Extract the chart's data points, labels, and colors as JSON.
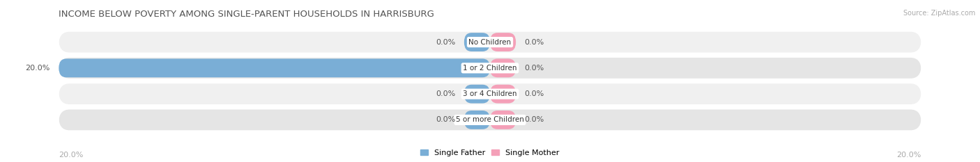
{
  "title": "INCOME BELOW POVERTY AMONG SINGLE-PARENT HOUSEHOLDS IN HARRISBURG",
  "source": "Source: ZipAtlas.com",
  "categories": [
    "No Children",
    "1 or 2 Children",
    "3 or 4 Children",
    "5 or more Children"
  ],
  "single_father": [
    0.0,
    20.0,
    0.0,
    0.0
  ],
  "single_mother": [
    0.0,
    0.0,
    0.0,
    0.0
  ],
  "max_val": 20.0,
  "father_color": "#7aaed6",
  "mother_color": "#f4a0b8",
  "bar_bg_light": "#ebebeb",
  "bar_bg_dark": "#dcdcdc",
  "father_label": "Single Father",
  "mother_label": "Single Mother",
  "title_fontsize": 9.5,
  "label_fontsize": 8,
  "cat_fontsize": 7.5,
  "background_color": "#ffffff",
  "bottom_left_label": "20.0%",
  "bottom_right_label": "20.0%",
  "stub_size": 1.2
}
